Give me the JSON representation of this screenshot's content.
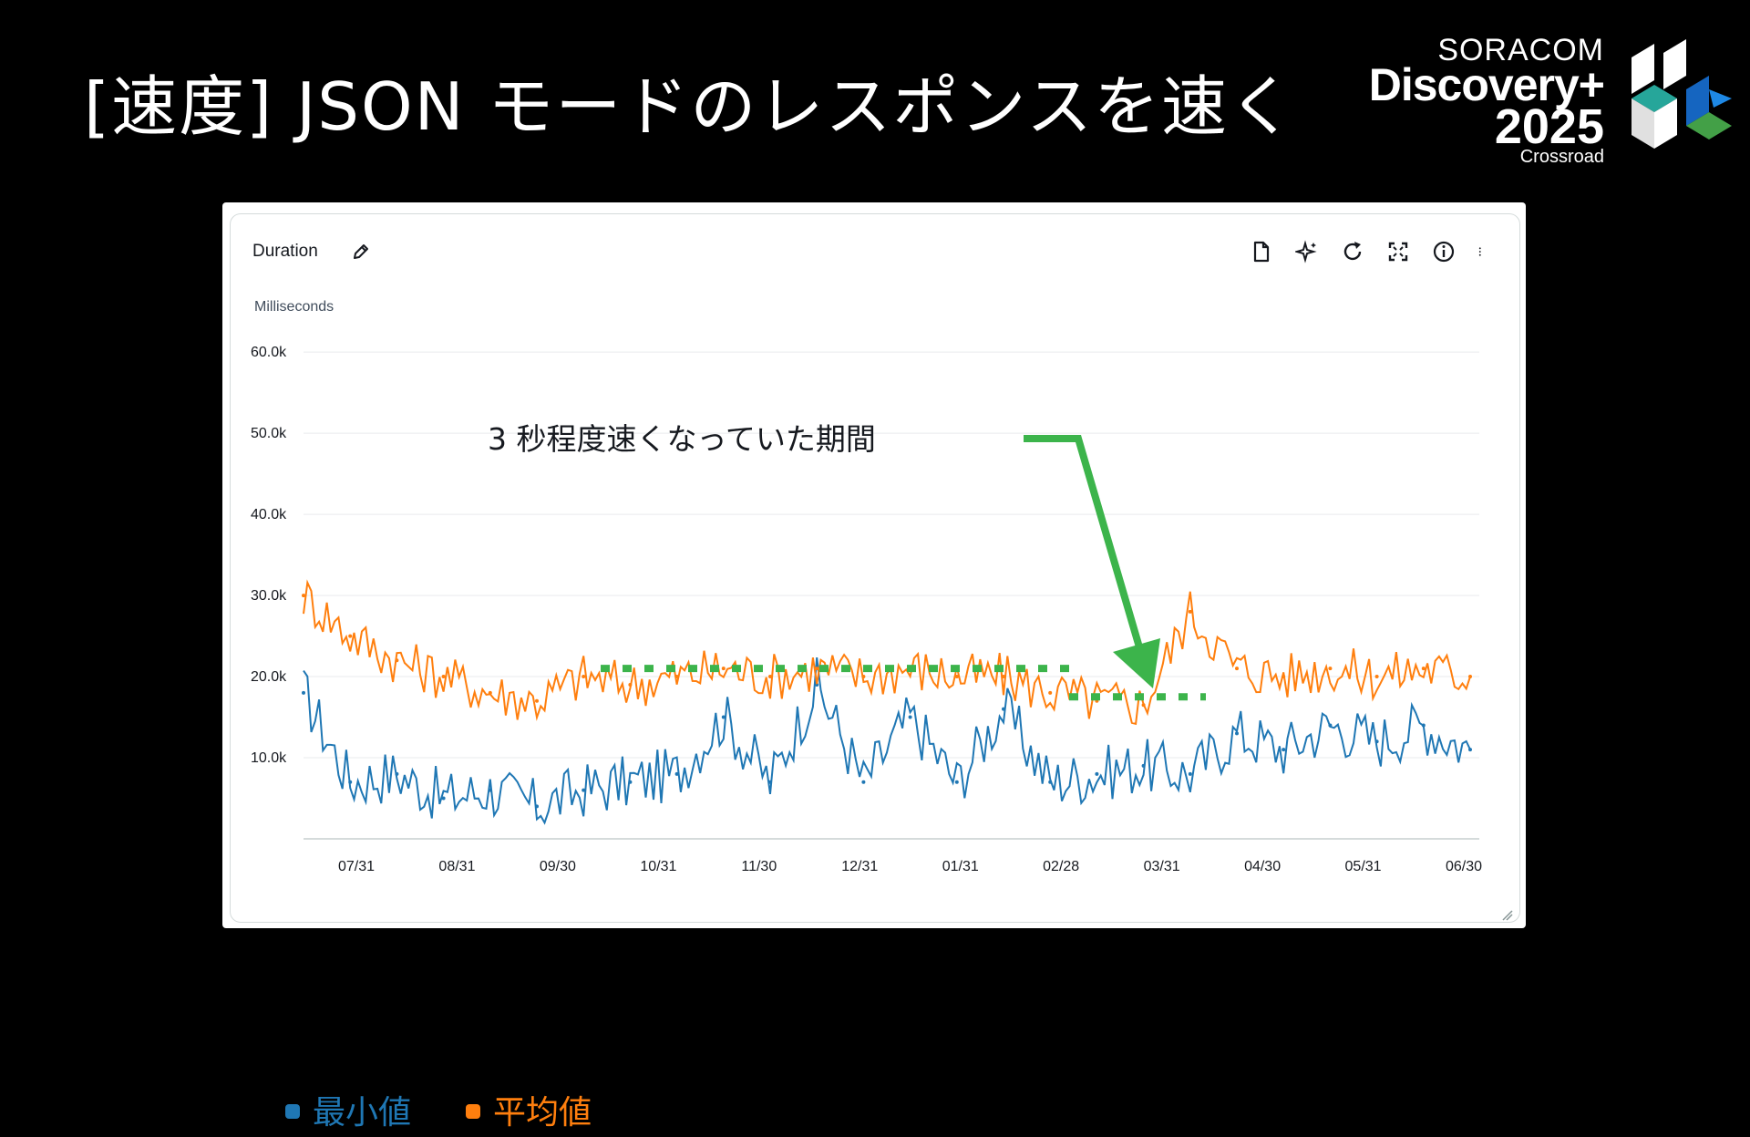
{
  "slide": {
    "title": "[速度] JSON モードのレスポンスを速く",
    "brand": {
      "soracom": "SORACOM",
      "discovery": "Discovery+",
      "year": "2025",
      "subtitle": "Crossroad"
    }
  },
  "panel": {
    "title": "Duration",
    "toolbar_icons": [
      "document-icon",
      "sparkle-icon",
      "refresh-icon",
      "fullscreen-icon",
      "info-icon",
      "more-icon"
    ]
  },
  "annotation": {
    "text": "3 秒程度速くなっていた期間",
    "color": "#3cb44b"
  },
  "legend": [
    {
      "label": "最小値",
      "color": "#1f77b4"
    },
    {
      "label": "平均値",
      "color": "#ff7f0e"
    }
  ],
  "chart_data": {
    "type": "line",
    "ylabel": "Milliseconds",
    "ylim": [
      0,
      68000
    ],
    "yticks": [
      "10.0k",
      "20.0k",
      "30.0k",
      "40.0k",
      "50.0k",
      "60.0k"
    ],
    "ytick_values": [
      10000,
      20000,
      30000,
      40000,
      50000,
      60000
    ],
    "xlabels": [
      "07/31",
      "08/31",
      "09/30",
      "10/31",
      "11/30",
      "12/31",
      "01/31",
      "02/28",
      "03/31",
      "04/30",
      "05/31",
      "06/30"
    ],
    "x": [
      "07/01",
      "07/15",
      "07/31",
      "08/15",
      "08/31",
      "09/15",
      "09/30",
      "10/15",
      "10/31",
      "11/15",
      "11/30",
      "12/15",
      "12/31",
      "01/15",
      "01/31",
      "02/15",
      "02/28",
      "03/15",
      "03/31",
      "04/15",
      "04/30",
      "05/15",
      "05/31",
      "06/15",
      "06/30",
      "07/06"
    ],
    "series": [
      {
        "name": "最小値",
        "color": "#1f77b4",
        "values": [
          18000,
          7000,
          8000,
          5000,
          6000,
          4000,
          6000,
          7000,
          8000,
          15000,
          7000,
          19000,
          7000,
          15000,
          7000,
          16000,
          7000,
          8000,
          9000,
          8000,
          13000,
          11000,
          14000,
          12000,
          14000,
          11000
        ]
      },
      {
        "name": "平均値",
        "color": "#ff7f0e",
        "values": [
          30000,
          25000,
          22000,
          20000,
          18000,
          17000,
          20000,
          19000,
          20000,
          21000,
          20000,
          21000,
          20000,
          21000,
          20000,
          20000,
          18000,
          17000,
          16500,
          28000,
          21000,
          20000,
          21000,
          20000,
          21000,
          20000
        ]
      }
    ]
  }
}
